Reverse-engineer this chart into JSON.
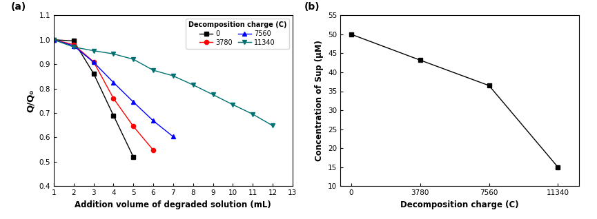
{
  "panel_a": {
    "title_label": "(a)",
    "xlabel": "Addition volume of degraded solution (mL)",
    "ylabel": "Q/Q₀",
    "xlim": [
      1,
      13
    ],
    "ylim": [
      0.4,
      1.1
    ],
    "yticks": [
      0.4,
      0.5,
      0.6,
      0.7,
      0.8,
      0.9,
      1.0,
      1.1
    ],
    "xticks": [
      1,
      2,
      3,
      4,
      5,
      6,
      7,
      8,
      9,
      10,
      11,
      12,
      13
    ],
    "legend_title": "Decomposition charge (C)",
    "series": [
      {
        "label": "0",
        "color": "black",
        "marker": "s",
        "x": [
          1,
          2,
          3,
          4,
          5
        ],
        "y": [
          1.0,
          0.995,
          0.862,
          0.69,
          0.52
        ]
      },
      {
        "label": "3780",
        "color": "red",
        "marker": "o",
        "x": [
          1,
          2,
          3,
          4,
          5,
          6
        ],
        "y": [
          1.0,
          0.98,
          0.91,
          0.76,
          0.645,
          0.548
        ]
      },
      {
        "label": "7560",
        "color": "blue",
        "marker": "^",
        "x": [
          1,
          2,
          3,
          4,
          5,
          6,
          7
        ],
        "y": [
          1.0,
          0.975,
          0.908,
          0.825,
          0.745,
          0.668,
          0.603
        ]
      },
      {
        "label": "11340",
        "color": "#007070",
        "marker": "v",
        "x": [
          1,
          2,
          3,
          4,
          5,
          6,
          7,
          8,
          9,
          10,
          11,
          12
        ],
        "y": [
          1.0,
          0.97,
          0.955,
          0.942,
          0.92,
          0.875,
          0.852,
          0.815,
          0.775,
          0.734,
          0.695,
          0.648
        ]
      }
    ]
  },
  "panel_b": {
    "title_label": "(b)",
    "xlabel": "Decomposition charge (C)",
    "ylabel": "Concentration of Sup (μM)",
    "ylim": [
      10,
      55
    ],
    "yticks": [
      10,
      15,
      20,
      25,
      30,
      35,
      40,
      45,
      50,
      55
    ],
    "xtick_positions": [
      0,
      3780,
      7560,
      11340
    ],
    "xtick_labels": [
      "0",
      "3780",
      "7560",
      "11340"
    ],
    "x": [
      0,
      3780,
      7560,
      11340
    ],
    "y": [
      50.0,
      43.2,
      36.5,
      15.0
    ],
    "color": "black",
    "marker": "s"
  }
}
